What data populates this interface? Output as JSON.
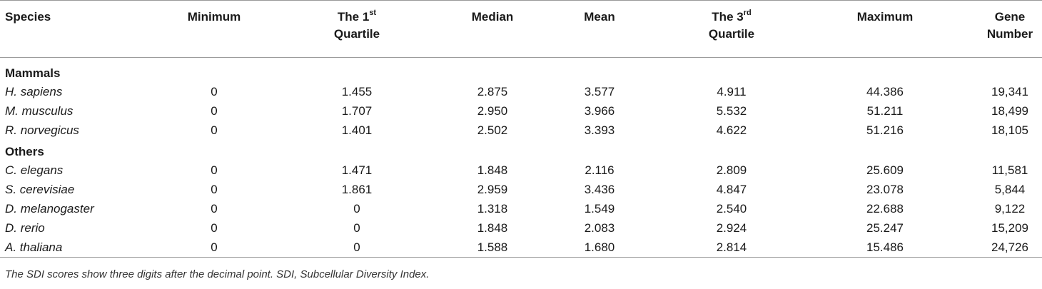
{
  "headers": {
    "species": "Species",
    "minimum": "Minimum",
    "q1_line1": "The 1",
    "q1_sup": "st",
    "q1_line2": "Quartile",
    "median": "Median",
    "mean": "Mean",
    "q3_line1": "The 3",
    "q3_sup": "rd",
    "q3_line2": "Quartile",
    "maximum": "Maximum",
    "gene_line1": "Gene",
    "gene_line2": "Number"
  },
  "groups": {
    "mammals": "Mammals",
    "others": "Others"
  },
  "rows": [
    {
      "species": "H. sapiens",
      "min": "0",
      "q1": "1.455",
      "median": "2.875",
      "mean": "3.577",
      "q3": "4.911",
      "max": "44.386",
      "genes": "19,341"
    },
    {
      "species": "M. musculus",
      "min": "0",
      "q1": "1.707",
      "median": "2.950",
      "mean": "3.966",
      "q3": "5.532",
      "max": "51.211",
      "genes": "18,499"
    },
    {
      "species": "R. norvegicus",
      "min": "0",
      "q1": "1.401",
      "median": "2.502",
      "mean": "3.393",
      "q3": "4.622",
      "max": "51.216",
      "genes": "18,105"
    },
    {
      "species": "C. elegans",
      "min": "0",
      "q1": "1.471",
      "median": "1.848",
      "mean": "2.116",
      "q3": "2.809",
      "max": "25.609",
      "genes": "11,581"
    },
    {
      "species": "S. cerevisiae",
      "min": "0",
      "q1": "1.861",
      "median": "2.959",
      "mean": "3.436",
      "q3": "4.847",
      "max": "23.078",
      "genes": "5,844"
    },
    {
      "species": "D. melanogaster",
      "min": "0",
      "q1": "0",
      "median": "1.318",
      "mean": "1.549",
      "q3": "2.540",
      "max": "22.688",
      "genes": "9,122"
    },
    {
      "species": "D. rerio",
      "min": "0",
      "q1": "0",
      "median": "1.848",
      "mean": "2.083",
      "q3": "2.924",
      "max": "25.247",
      "genes": "15,209"
    },
    {
      "species": "A. thaliana",
      "min": "0",
      "q1": "0",
      "median": "1.588",
      "mean": "1.680",
      "q3": "2.814",
      "max": "15.486",
      "genes": "24,726"
    }
  ],
  "footnote": "The SDI scores show three digits after the decimal point. SDI, Subcellular Diversity Index."
}
